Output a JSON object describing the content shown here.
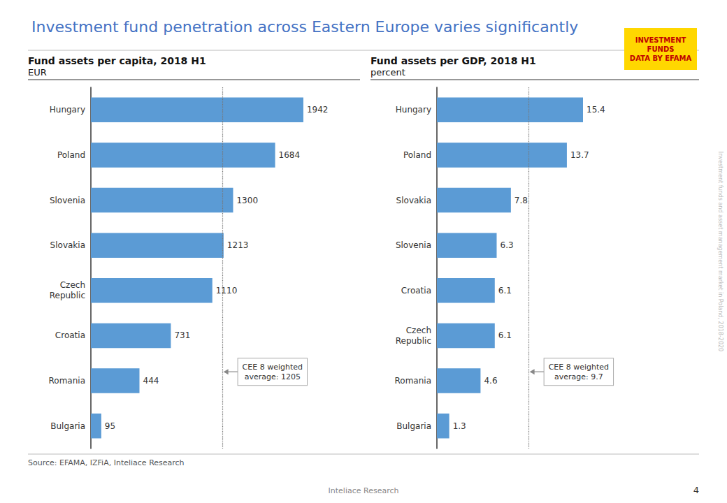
{
  "title": "Investment fund penetration across Eastern Europe varies significantly",
  "chart_data": [
    {
      "type": "bar",
      "orientation": "horizontal",
      "title": "Fund assets per capita, 2018 H1",
      "subtitle": "EUR",
      "categories": [
        "Hungary",
        "Poland",
        "Slovenia",
        "Slovakia",
        "Czech\nRepublic",
        "Croatia",
        "Romania",
        "Bulgaria"
      ],
      "values": [
        1942,
        1684,
        1300,
        1213,
        1110,
        731,
        444,
        95
      ],
      "color": "#5B9BD5",
      "xlim": [
        0,
        2300
      ],
      "data_labels": true,
      "tick_labels": "y",
      "grid": false,
      "annotations": [
        {
          "text": "CEE 8 weighted\naverage: 1205",
          "x": 1205
        }
      ]
    },
    {
      "type": "bar",
      "orientation": "horizontal",
      "title": "Fund assets per GDP, 2018 H1",
      "subtitle": "percent",
      "categories": [
        "Hungary",
        "Poland",
        "Slovakia",
        "Slovenia",
        "Croatia",
        "Czech\nRepublic",
        "Romania",
        "Bulgaria"
      ],
      "values": [
        15.4,
        13.7,
        7.8,
        6.3,
        6.1,
        6.1,
        4.6,
        1.3
      ],
      "color": "#5B9BD5",
      "xlim": [
        0,
        21
      ],
      "data_labels": true,
      "tick_labels": "y",
      "grid": false,
      "annotations": [
        {
          "text": "CEE 8 weighted\naverage: 9.7",
          "x": 9.7
        }
      ]
    }
  ],
  "source": "Source: EFAMA, IZFiA, Inteliace Research",
  "footer": "Inteliace Research",
  "page_number": "4",
  "badge": "INVESTMENT\nFUNDS\nDATA BY EFAMA",
  "watermark": "Investment funds and asset management market in Poland, 2018-2020"
}
